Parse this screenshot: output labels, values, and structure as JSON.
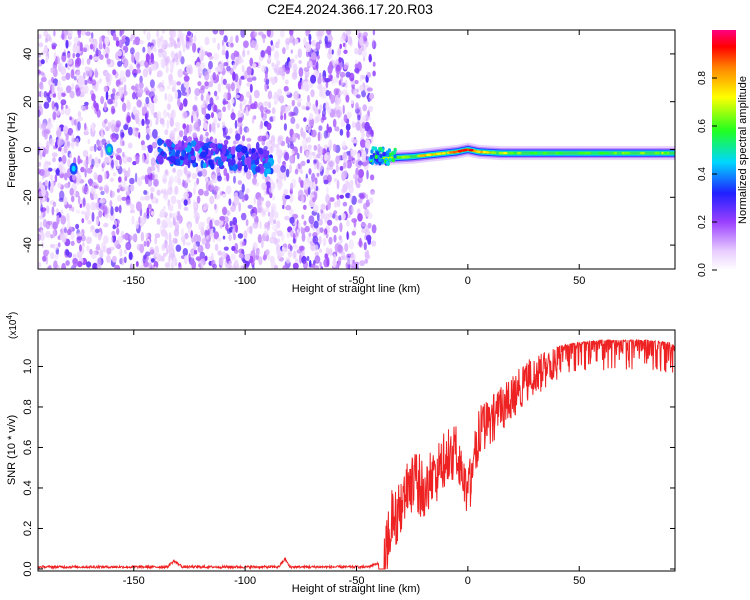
{
  "title": "C2E4.2024.366.17.20.R03",
  "colors": {
    "snr_line": "#ee2222",
    "axis": "#000000",
    "waterfall_bg": "#ffffff"
  },
  "chart_data": [
    {
      "type": "heatmap",
      "xlabel": "Height of straight line (km)",
      "ylabel": "Frequency (Hz)",
      "xlim": [
        -193,
        93
      ],
      "ylim": [
        -50,
        50
      ],
      "xticks": [
        -150,
        -100,
        -50,
        0,
        50
      ],
      "xtick_labels": [
        "-150",
        "-100",
        "-50",
        "0",
        "50"
      ],
      "yticks": [
        -40,
        -20,
        0,
        20,
        40
      ],
      "ytick_labels": [
        "-40",
        "-20",
        "0",
        "20",
        "40"
      ],
      "colorbar": {
        "label": "Normalized spectral amplitude",
        "range": [
          0,
          1
        ],
        "ticks": [
          0,
          0.2,
          0.4,
          0.6,
          0.8
        ],
        "tick_labels": [
          "0.0",
          "0.2",
          "0.4",
          "0.6",
          "0.8"
        ],
        "colormap": "rainbow (white-violet-blue-cyan-green-yellow-orange-red-magenta)"
      },
      "noise_region_x": [
        -193,
        -42
      ],
      "signal_track": {
        "x": [
          -42,
          -35,
          -25,
          -15,
          -5,
          0,
          5,
          15,
          30,
          50,
          70,
          93
        ],
        "frequency": [
          -4,
          -3.5,
          -3,
          -2,
          -1,
          0,
          -1,
          -1.5,
          -1.5,
          -1.5,
          -1.5,
          -1.5
        ],
        "peak_amplitude": [
          0.6,
          0.7,
          0.75,
          0.8,
          0.85,
          0.95,
          0.85,
          0.7,
          0.6,
          0.6,
          0.65,
          0.7
        ]
      },
      "noise_band": {
        "x": [
          -140,
          -120,
          -100,
          -88
        ],
        "frequency": [
          -1,
          -2,
          -4,
          -6
        ],
        "peak_amplitude": [
          0.35,
          0.4,
          0.35,
          0.4
        ]
      },
      "noise_blobs": [
        {
          "x": -177,
          "frequency": -8,
          "amplitude": 0.35
        },
        {
          "x": -161,
          "frequency": 0,
          "amplitude": 0.4
        }
      ]
    },
    {
      "type": "line",
      "xlabel": "Height of straight line (km)",
      "ylabel": "SNR (10 * v/v)",
      "y_multiplier": "(x10",
      "y_multiplier_exp": "4",
      "y_multiplier_close": ")",
      "xlim": [
        -193,
        93
      ],
      "ylim": [
        -0.01,
        1.18
      ],
      "xticks": [
        -150,
        -100,
        -50,
        0,
        50
      ],
      "xtick_labels": [
        "-150",
        "-100",
        "-50",
        "0",
        "50"
      ],
      "yticks": [
        0,
        0.2,
        0.4,
        0.6,
        0.8,
        1.0
      ],
      "ytick_labels": [
        "0.0",
        "0.2",
        "0.4",
        "0.6",
        "0.8",
        "1.0"
      ],
      "series": [
        {
          "x": [
            -193,
            -150,
            -135,
            -132,
            -128,
            -100,
            -85,
            -82,
            -80,
            -60,
            -45,
            -40,
            -38,
            -36,
            -34,
            -30,
            -25,
            -20,
            -15,
            -10,
            -5,
            0,
            5,
            10,
            15,
            20,
            25,
            30,
            35,
            40,
            50,
            60,
            70,
            80,
            90,
            93
          ],
          "values": [
            0.01,
            0.01,
            0.01,
            0.04,
            0.01,
            0.01,
            0.01,
            0.05,
            0.01,
            0.01,
            0.01,
            0.03,
            0.1,
            0.3,
            0.4,
            0.5,
            0.6,
            0.55,
            0.6,
            0.7,
            0.72,
            0.5,
            0.8,
            0.85,
            0.9,
            0.95,
            1.02,
            1.05,
            1.08,
            1.1,
            1.12,
            1.13,
            1.13,
            1.13,
            1.12,
            1.1
          ]
        }
      ]
    }
  ]
}
